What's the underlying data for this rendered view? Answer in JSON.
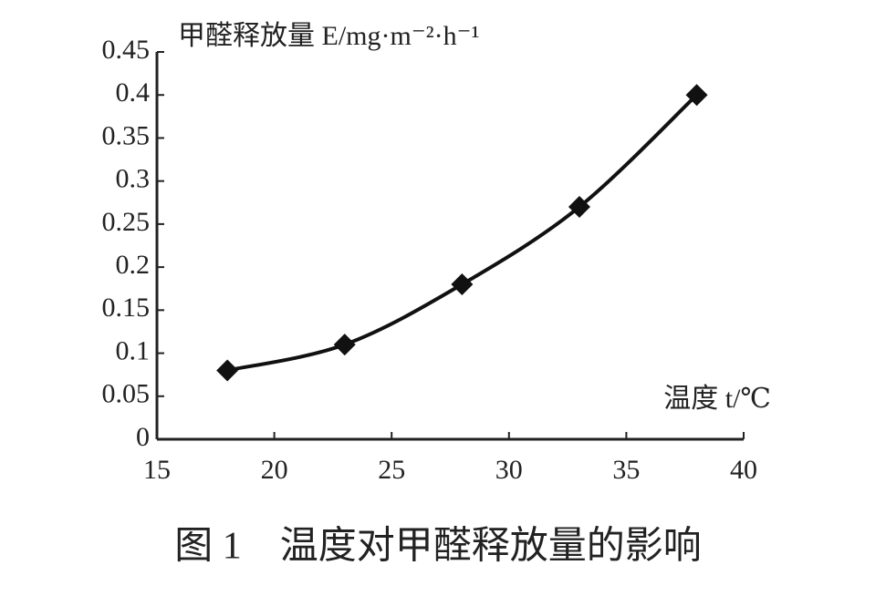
{
  "chart_data": {
    "type": "line",
    "title": "图 1　温度对甲醛释放量的影响",
    "y_label": "甲醛释放量 E/mg·m⁻²·h⁻¹",
    "x_label": "温度 t/℃",
    "x": [
      18,
      23,
      28,
      33,
      38
    ],
    "values": [
      0.08,
      0.11,
      0.18,
      0.27,
      0.4
    ],
    "color": "#111111",
    "xlim": [
      15,
      40
    ],
    "xticks": [
      15,
      20,
      25,
      30,
      35,
      40
    ],
    "ylim": [
      0,
      0.45
    ],
    "yticks": [
      0,
      0.05,
      0.1,
      0.15,
      0.2,
      0.25,
      0.3,
      0.35,
      0.4,
      0.45
    ],
    "grid": false
  }
}
